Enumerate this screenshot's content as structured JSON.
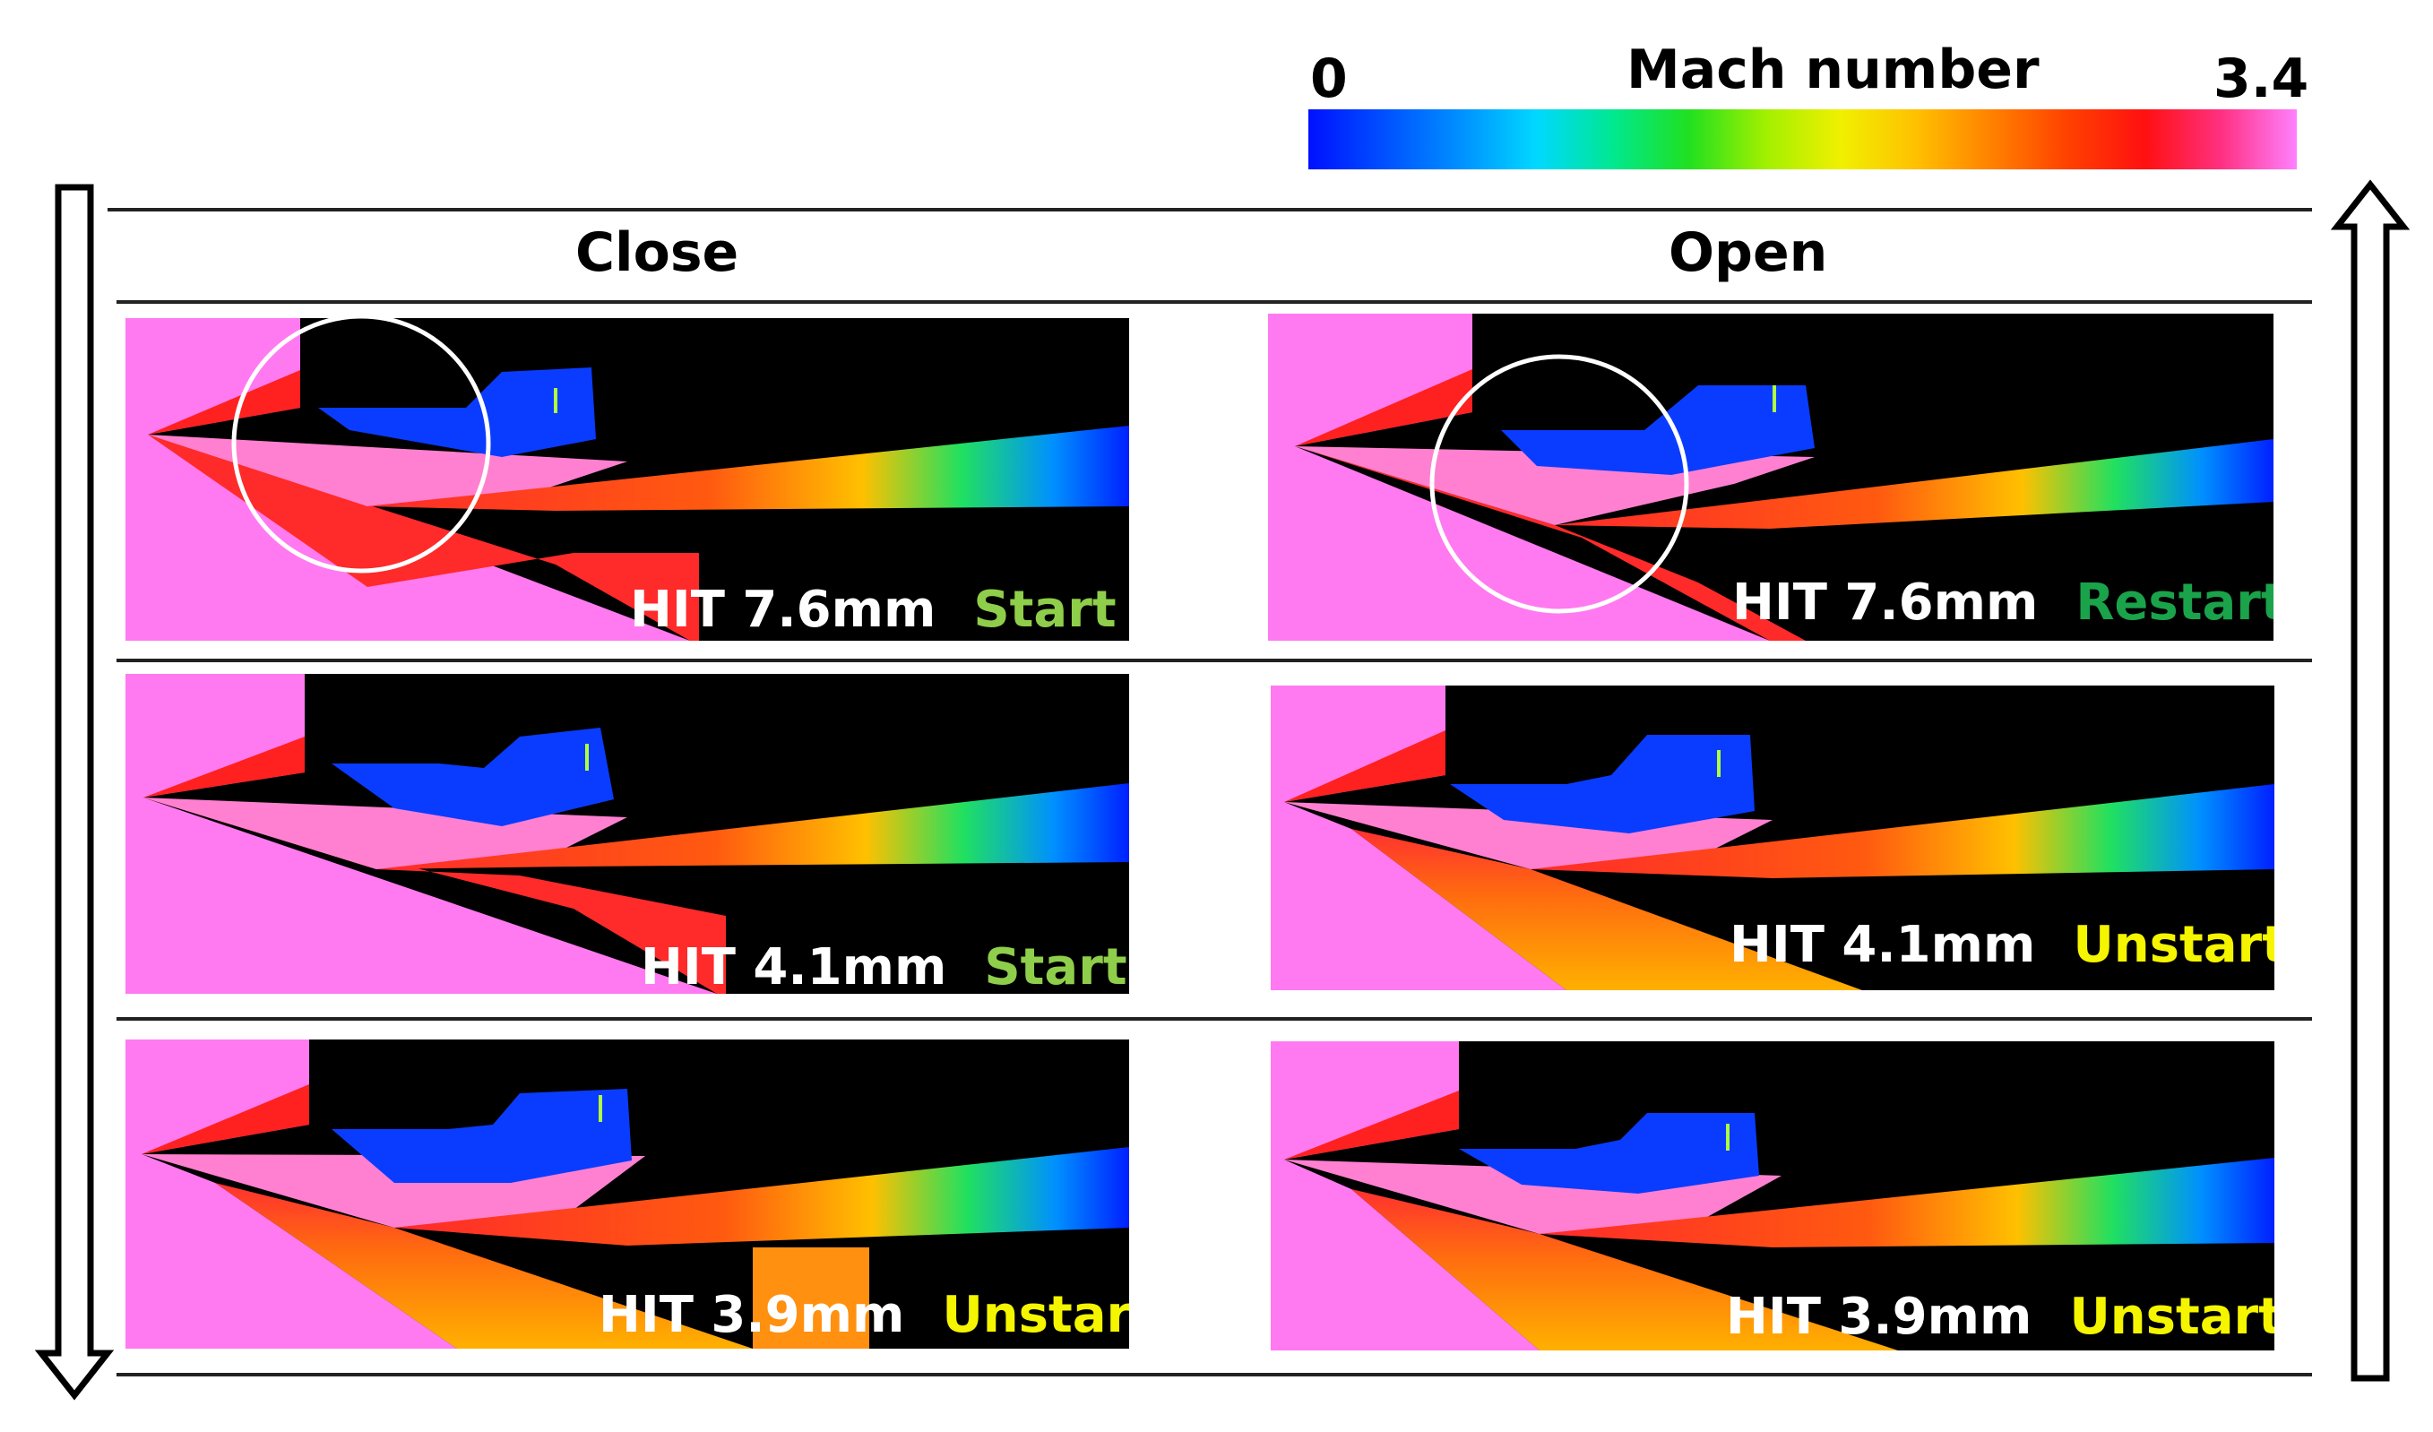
{
  "colorbar": {
    "title": "Mach number",
    "min_label": "0",
    "max_label": "3.4",
    "colors": [
      "#0010ff",
      "#0050ff",
      "#0090ff",
      "#00d8ff",
      "#00e890",
      "#20e020",
      "#a0f000",
      "#f0f000",
      "#ffc000",
      "#ff8000",
      "#ff4000",
      "#ff1010",
      "#ff3080",
      "#ff80ff"
    ]
  },
  "columns": {
    "close": "Close",
    "open": "Open"
  },
  "status_colors": {
    "Start": "#8fce4a",
    "Restart": "#1aa34a",
    "Unstart": "#f5f500"
  },
  "panels": {
    "close": [
      {
        "hit": "HIT 7.6mm",
        "status": "Start"
      },
      {
        "hit": "HIT 4.1mm",
        "status": "Start"
      },
      {
        "hit": "HIT 3.9mm",
        "status": "Unstart"
      }
    ],
    "open": [
      {
        "hit": "HIT 7.6mm",
        "status": "Restart"
      },
      {
        "hit": "HIT 4.1mm",
        "status": "Unstart"
      },
      {
        "hit": "HIT 3.9mm",
        "status": "Unstart"
      }
    ]
  }
}
